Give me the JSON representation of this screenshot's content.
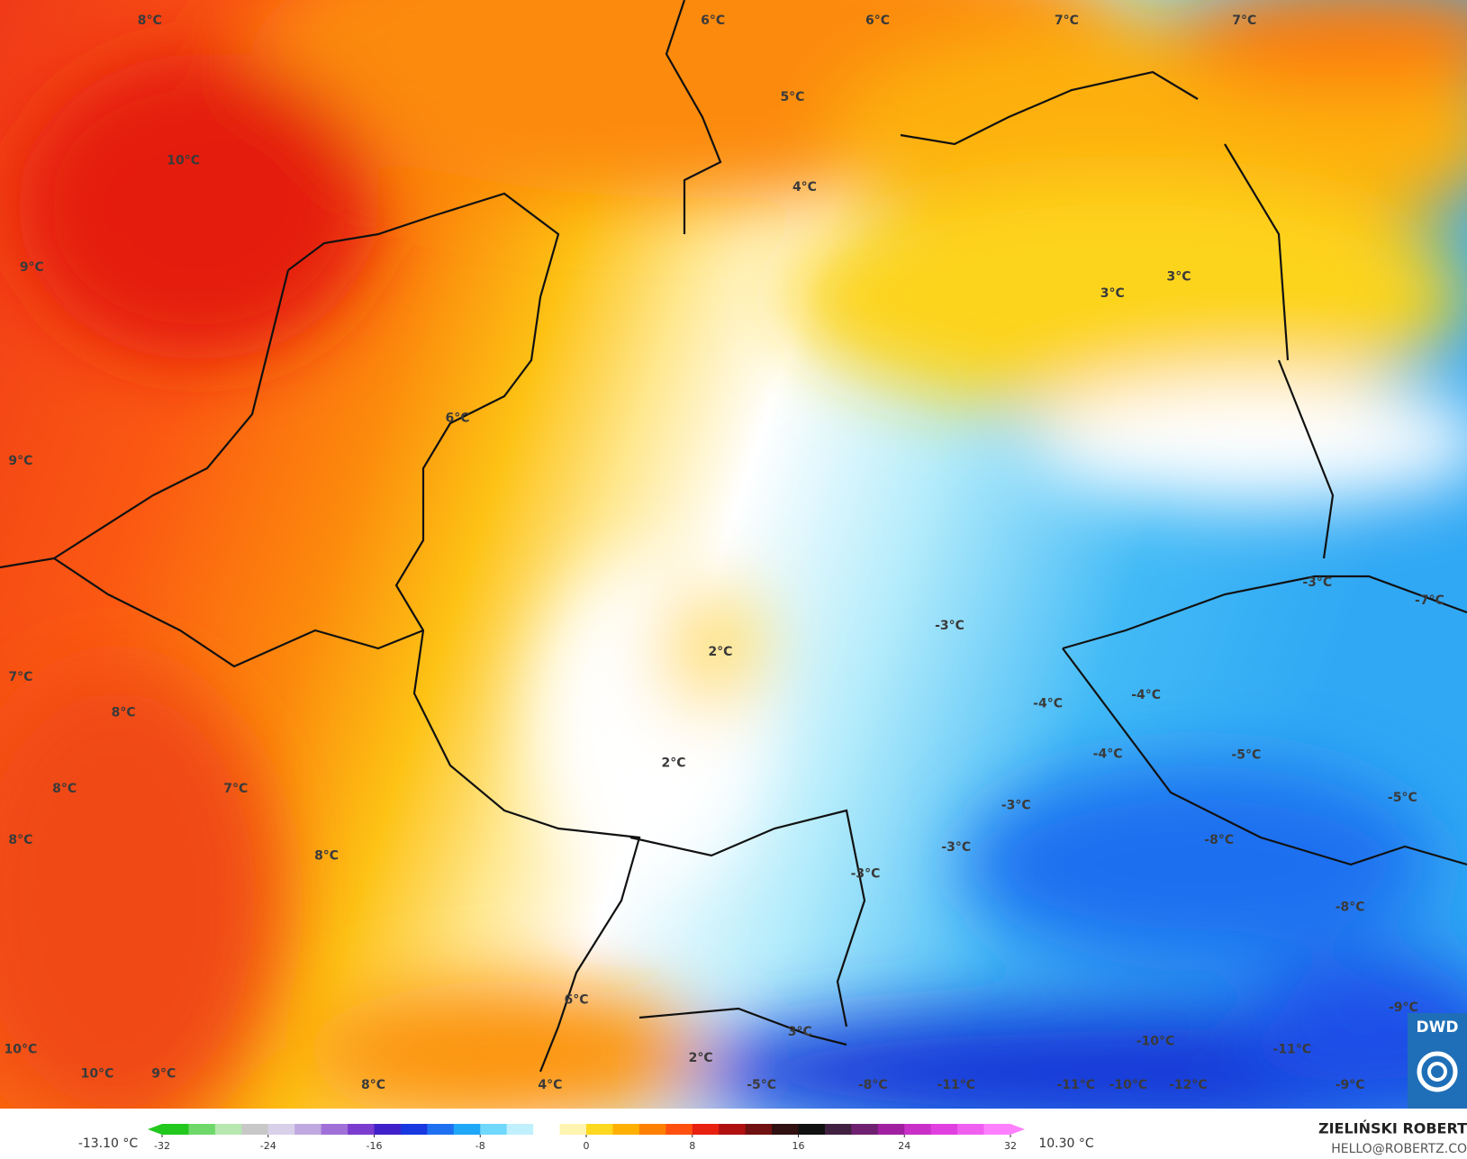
{
  "map": {
    "labels": [
      "8°C",
      "6°C",
      "6°C",
      "7°C",
      "7°C",
      "5°C",
      "10°C",
      "4°C",
      "9°C",
      "3°C",
      "3°C",
      "6°C",
      "9°C",
      "-3°C",
      "-3°C",
      "-7°C",
      "2°C",
      "7°C",
      "-4°C",
      "-4°C",
      "8°C",
      "-4°C",
      "-5°C",
      "2°C",
      "8°C",
      "7°C",
      "-3°C",
      "-5°C",
      "8°C",
      "-8°C",
      "8°C",
      "-3°C",
      "-3°C",
      "-8°C",
      "6°C",
      "-9°C",
      "3°C",
      "-10°C",
      "-11°C",
      "10°C",
      "2°C",
      "10°C",
      "9°C",
      "8°C",
      "4°C",
      "-5°C",
      "-8°C",
      "-11°C",
      "-11°C",
      "-10°C",
      "-12°C",
      "-9°C"
    ],
    "logo": "DWD"
  },
  "colorbar": {
    "min_label": "-13.10 °C",
    "max_label": "10.30 °C",
    "range": [
      -32,
      32
    ],
    "ticks": [
      -32,
      -24,
      -16,
      -8,
      0,
      8,
      16,
      24,
      32
    ],
    "colors": [
      "#22c81e",
      "#6fd86a",
      "#b7e8b0",
      "#c8c8c8",
      "#d8d0e8",
      "#c0a8e0",
      "#a070d8",
      "#7c3cd0",
      "#4020c8",
      "#1838e0",
      "#1e70f0",
      "#20a8f8",
      "#70d8fc",
      "#c0f0fc",
      "#ffffff",
      "#fff4b0",
      "#ffd820",
      "#ffb000",
      "#ff8000",
      "#ff5010",
      "#e82010",
      "#b01010",
      "#701010",
      "#301010",
      "#101010",
      "#402040",
      "#702070",
      "#a020a0",
      "#c830c8",
      "#e040e0",
      "#f060f0",
      "#ff80ff"
    ]
  },
  "credit": {
    "author": "ZIELIŃSKI ROBERT",
    "email": "HELLO@ROBERTZ.CO"
  }
}
